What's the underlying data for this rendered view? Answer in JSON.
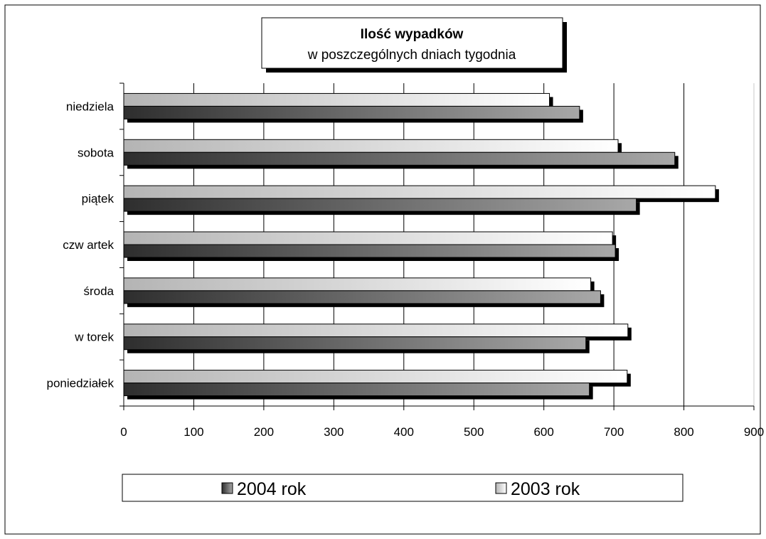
{
  "chart_data": {
    "type": "bar",
    "orientation": "horizontal",
    "title": "Ilość wypadków",
    "subtitle": "w poszczególnych  dniach tygodnia",
    "categories": [
      "poniedziałek",
      "w torek",
      "środa",
      "czw artek",
      "piątek",
      "sobota",
      "niedziela"
    ],
    "series": [
      {
        "name": "2004 rok",
        "values": [
          665,
          660,
          681,
          702,
          732,
          787,
          651
        ]
      },
      {
        "name": "2003 rok",
        "values": [
          719,
          720,
          667,
          698,
          845,
          706,
          608
        ]
      }
    ],
    "xlim": [
      0,
      900
    ],
    "xticks": [
      0,
      100,
      200,
      300,
      400,
      500,
      600,
      700,
      800,
      900
    ],
    "grid": "vertical",
    "legend_position": "bottom",
    "colors": {
      "2004 rok": "#6f6f6f",
      "2003 rok": "#efefef"
    }
  }
}
